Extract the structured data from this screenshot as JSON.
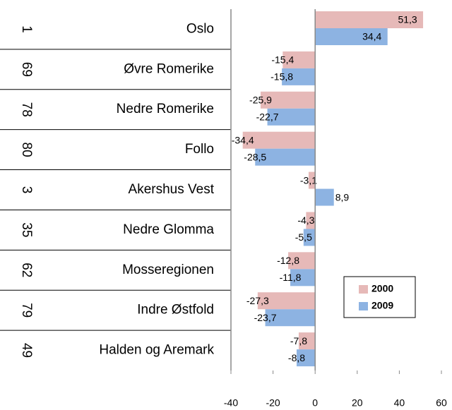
{
  "chart_data": {
    "type": "bar",
    "orientation": "horizontal",
    "row_numbers": [
      1,
      69,
      78,
      80,
      3,
      35,
      62,
      79,
      49
    ],
    "categories": [
      "Oslo",
      "Øvre Romerike",
      "Nedre Romerike",
      "Follo",
      "Akershus Vest",
      "Nedre Glomma",
      "Mosseregionen",
      "Indre Østfold",
      "Halden og Aremark"
    ],
    "series": [
      {
        "name": "2000",
        "color": "#e6b9b8",
        "values": [
          51.3,
          -15.4,
          -25.9,
          -34.4,
          -3.1,
          -4.3,
          -12.8,
          -27.3,
          -7.8
        ],
        "value_labels": [
          "51,3",
          "-15,4",
          "-25,9",
          "-34,4",
          "-3,1",
          "-4,3",
          "-12,8",
          "-27,3",
          "-7,8"
        ]
      },
      {
        "name": "2009",
        "color": "#8db3e2",
        "values": [
          34.4,
          -15.8,
          -22.7,
          -28.5,
          8.9,
          -5.5,
          -11.8,
          -23.7,
          -8.8
        ],
        "value_labels": [
          "34,4",
          "-15,8",
          "-22,7",
          "-28,5",
          "8,9",
          "-5,5",
          "-11,8",
          "-23,7",
          "-8,8"
        ]
      }
    ],
    "xlim": [
      -40,
      60
    ],
    "xticks": [
      -40,
      -20,
      0,
      20,
      40,
      60
    ],
    "legend": "lower right"
  }
}
